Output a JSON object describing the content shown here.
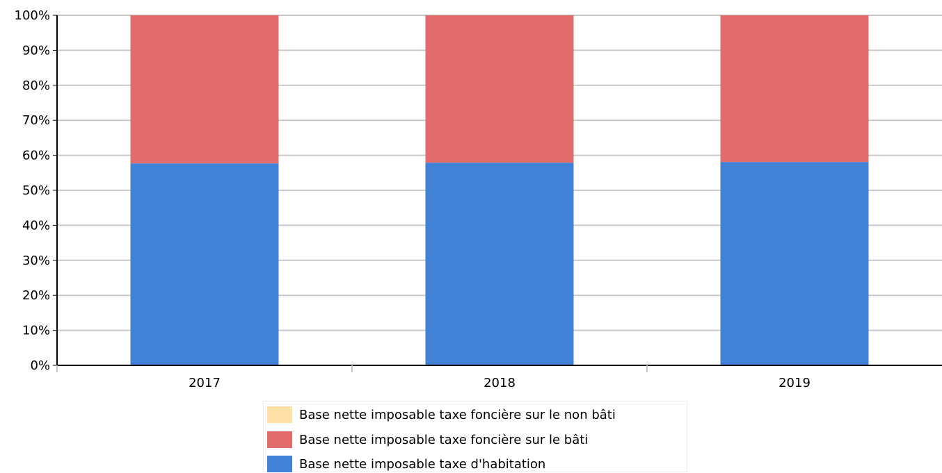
{
  "chart_data": {
    "type": "bar",
    "stacked": true,
    "normalized": true,
    "categories": [
      "2017",
      "2018",
      "2019"
    ],
    "series": [
      {
        "name": "Base nette imposable taxe d'habitation",
        "color": "#4282d6",
        "values": [
          57.7,
          57.9,
          58.1
        ]
      },
      {
        "name": "Base nette imposable taxe foncière sur le bâti",
        "color": "#e26c6b",
        "values": [
          42.3,
          42.1,
          41.9
        ]
      },
      {
        "name": "Base nette imposable taxe foncière sur le non bâti",
        "color": "#ffe0a6",
        "values": [
          0.0,
          0.0,
          0.0
        ]
      }
    ],
    "yticks": [
      "0%",
      "10%",
      "20%",
      "30%",
      "40%",
      "50%",
      "60%",
      "70%",
      "80%",
      "90%",
      "100%"
    ],
    "ylim": [
      0,
      100
    ],
    "grid": true,
    "legend_position": "bottom",
    "legend_entries": [
      {
        "label": "Base nette imposable taxe foncière sur le non bâti",
        "color": "#ffe0a6"
      },
      {
        "label": "Base nette imposable taxe foncière sur le bâti",
        "color": "#e26c6b"
      },
      {
        "label": "Base nette imposable taxe d'habitation",
        "color": "#4282d6"
      }
    ]
  }
}
